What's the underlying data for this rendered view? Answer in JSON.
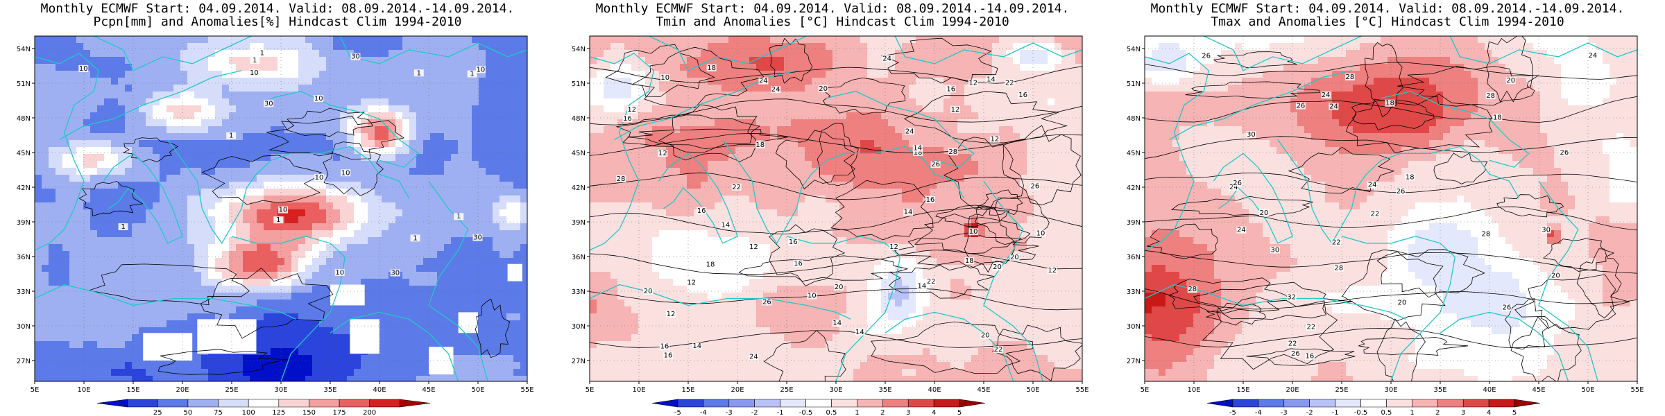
{
  "panels": [
    {
      "title_line1": "Monthly ECMWF Start: 04.09.2014. Valid: 08.09.2014.-14.09.2014.",
      "title_line2": "Pcpn[mm] and Anomalies[%] Hindcast Clim 1994-2010",
      "colorbar": {
        "colors": [
          "#0010c8",
          "#2a44dc",
          "#5c7ae8",
          "#9fb0f2",
          "#d6ddfa",
          "#ffffff",
          "#fad4d4",
          "#f4a0a0",
          "#ea6060",
          "#d82020",
          "#a80000"
        ],
        "tick_labels": [
          "25",
          "50",
          "75",
          "100",
          "125",
          "150",
          "175",
          "200"
        ]
      },
      "contour_labels": [
        "10",
        "30",
        "10",
        "30",
        "10",
        "1",
        "10",
        "1",
        "1",
        "10",
        "1",
        "1",
        "30",
        "10",
        "30",
        "10",
        "1",
        "1",
        "1",
        "10",
        "1"
      ]
    },
    {
      "title_line1": "Monthly ECMWF Start: 04.09.2014. Valid: 08.09.2014.-14.09.2014.",
      "title_line2": "Tmin and Anomalies [°C] Hindcast Clim 1994-2010",
      "colorbar": {
        "colors": [
          "#0010c8",
          "#2a44dc",
          "#5c7ae8",
          "#8898ee",
          "#b8c2f6",
          "#e4e8fc",
          "#ffffff",
          "#fbe0e0",
          "#f6b4b4",
          "#ee8080",
          "#e04848",
          "#c81818",
          "#9a0000"
        ],
        "tick_labels": [
          "-5",
          "-4",
          "-3",
          "-2",
          "-1",
          "-0.5",
          "0.5",
          "1",
          "2",
          "3",
          "4",
          "5"
        ]
      },
      "contour_labels": [
        "12",
        "12",
        "10",
        "10",
        "12",
        "12",
        "14",
        "14",
        "16",
        "12",
        "16",
        "16",
        "18",
        "12",
        "14",
        "14",
        "16",
        "16",
        "14",
        "22",
        "20",
        "12",
        "10",
        "14",
        "16",
        "18",
        "20",
        "24",
        "20",
        "22",
        "24",
        "26",
        "26",
        "28",
        "24",
        "16",
        "18",
        "20",
        "22",
        "20",
        "24",
        "26",
        "28",
        "14",
        "12",
        "18",
        "24",
        "22",
        "16",
        "10",
        "12",
        "14",
        "12",
        "16",
        "18",
        "20"
      ]
    },
    {
      "title_line1": "Monthly ECMWF Start: 04.09.2014. Valid: 08.09.2014.-14.09.2014.",
      "title_line2": "Tmax and Anomalies [°C] Hindcast Clim 1994-2010",
      "colorbar": {
        "colors": [
          "#0010c8",
          "#2a44dc",
          "#5c7ae8",
          "#8898ee",
          "#b8c2f6",
          "#e4e8fc",
          "#ffffff",
          "#fbe0e0",
          "#f6b4b4",
          "#ee8080",
          "#e04848",
          "#c81818",
          "#9a0000"
        ],
        "tick_labels": [
          "-5",
          "-4",
          "-3",
          "-2",
          "-1",
          "-0.5",
          "0.5",
          "1",
          "2",
          "3",
          "4",
          "5"
        ]
      },
      "contour_labels": [
        "20",
        "18",
        "18",
        "22",
        "24",
        "26",
        "20",
        "22",
        "20",
        "24",
        "22",
        "24",
        "26",
        "28",
        "26",
        "24",
        "26",
        "28",
        "30",
        "26",
        "28",
        "30",
        "32",
        "26",
        "22",
        "24",
        "28",
        "26",
        "30",
        "28",
        "24",
        "20",
        "18",
        "16"
      ]
    }
  ],
  "axes": {
    "lat_labels": [
      "54N",
      "51N",
      "48N",
      "45N",
      "42N",
      "39N",
      "36N",
      "33N",
      "30N",
      "27N"
    ],
    "lon_labels": [
      "5E",
      "10E",
      "15E",
      "20E",
      "25E",
      "30E",
      "35E",
      "40E",
      "45E",
      "50E",
      "55E"
    ]
  }
}
